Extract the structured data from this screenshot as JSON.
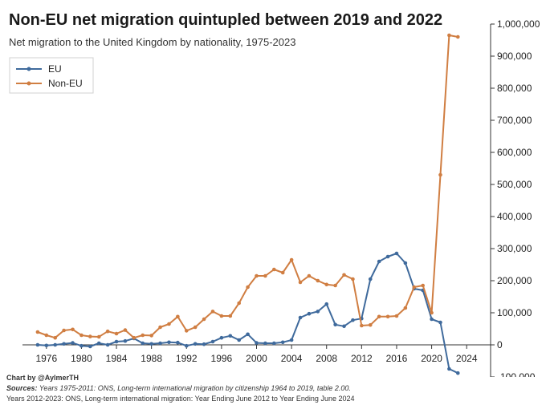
{
  "chart_data": {
    "type": "line",
    "title": "Non-EU net migration quintupled between 2019 and 2022",
    "subtitle": "Net migration to the United Kingdom by nationality, 1975-2023",
    "xlabel": "",
    "ylabel": "",
    "xlim": [
      1974,
      2026
    ],
    "ylim": [
      -100000,
      1000000
    ],
    "x_ticks": [
      1976,
      1980,
      1984,
      1988,
      1992,
      1996,
      2000,
      2004,
      2008,
      2012,
      2016,
      2020,
      2024
    ],
    "y_ticks": [
      -100000,
      0,
      100000,
      200000,
      300000,
      400000,
      500000,
      600000,
      700000,
      800000,
      900000,
      1000000
    ],
    "y_tick_labels": [
      "-100,000",
      "0",
      "100,000",
      "200,000",
      "300,000",
      "400,000",
      "500,000",
      "600,000",
      "700,000",
      "800,000",
      "900,000",
      "1,000,000"
    ],
    "y_axis_side": "right",
    "grid": false,
    "legend_position": "top-left",
    "x": [
      1975,
      1976,
      1977,
      1978,
      1979,
      1980,
      1981,
      1982,
      1983,
      1984,
      1985,
      1986,
      1987,
      1988,
      1989,
      1990,
      1991,
      1992,
      1993,
      1994,
      1995,
      1996,
      1997,
      1998,
      1999,
      2000,
      2001,
      2002,
      2003,
      2004,
      2005,
      2006,
      2007,
      2008,
      2009,
      2010,
      2011,
      2012,
      2013,
      2014,
      2015,
      2016,
      2017,
      2018,
      2019,
      2020,
      2021,
      2022,
      2023
    ],
    "series": [
      {
        "name": "EU",
        "color": "#3f6a9c",
        "values": [
          0,
          -2000,
          0,
          3000,
          6000,
          -3000,
          -5000,
          5000,
          0,
          10000,
          12000,
          20000,
          5000,
          3000,
          5000,
          8000,
          7000,
          -3000,
          3000,
          2000,
          10000,
          22000,
          28000,
          15000,
          33000,
          6000,
          5000,
          5000,
          8000,
          15000,
          85000,
          97000,
          104000,
          127000,
          63000,
          58000,
          77000,
          82000,
          205000,
          260000,
          275000,
          285000,
          255000,
          175000,
          170000,
          80000,
          70000,
          -75000,
          -88000
        ]
      },
      {
        "name": "Non-EU",
        "color": "#d07e42",
        "values": [
          40000,
          30000,
          22000,
          45000,
          48000,
          30000,
          26000,
          25000,
          42000,
          35000,
          46000,
          22000,
          30000,
          29000,
          55000,
          65000,
          88000,
          44000,
          55000,
          80000,
          104000,
          90000,
          90000,
          130000,
          180000,
          215000,
          215000,
          235000,
          225000,
          265000,
          195000,
          215000,
          200000,
          188000,
          185000,
          218000,
          205000,
          60000,
          62000,
          88000,
          88000,
          90000,
          115000,
          180000,
          185000,
          100000,
          530000,
          965000,
          960000
        ]
      }
    ]
  },
  "footer": {
    "credit": "Chart by @AylmerTH",
    "sources_label": "Sources:",
    "sources_line1": "Years 1975-2011: ONS, Long-term international migration by citizenship 1964 to 2019, table 2.00.",
    "sources_line2": "Years 2012-2023: ONS, Long-term international migration: Year Ending June 2012 to Year Ending June 2024"
  }
}
